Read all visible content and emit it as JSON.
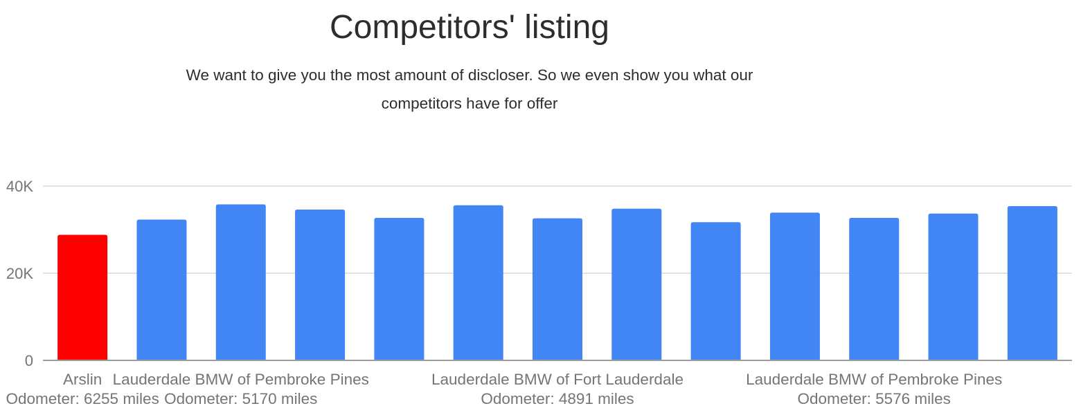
{
  "title": "Competitors' listing",
  "subtitle": "We want to give you the most amount of discloser. So we even show you what our competitors have for offer",
  "colors": {
    "highlight": "#ff0000",
    "bar": "#4285f4",
    "grid": "#d9d9d9",
    "axis": "#9e9e9e",
    "tick_text": "#757575"
  },
  "chart_data": {
    "type": "bar",
    "title": "Competitors' listing",
    "xlabel": "",
    "ylabel": "",
    "ylim": [
      0,
      40000
    ],
    "yticks": [
      {
        "value": 0,
        "label": "0"
      },
      {
        "value": 20000,
        "label": "20K"
      },
      {
        "value": 40000,
        "label": "40K"
      }
    ],
    "grid": true,
    "legend": "none",
    "categories": [
      "Arslin\nOdometer: 6255 miles",
      "",
      "Lauderdale BMW of Pembroke Pines\nOdometer: 5170 miles",
      "",
      "",
      "",
      "Lauderdale BMW of Fort Lauderdale\nOdometer: 4891 miles",
      "",
      "",
      "",
      "Lauderdale BMW of Pembroke Pines\nOdometer: 5576 miles",
      "",
      ""
    ],
    "values": [
      28800,
      32300,
      35800,
      34600,
      32700,
      35600,
      32600,
      34800,
      31700,
      33900,
      32700,
      33700,
      35400
    ],
    "bar_colors": [
      "#ff0000",
      "#4285f4",
      "#4285f4",
      "#4285f4",
      "#4285f4",
      "#4285f4",
      "#4285f4",
      "#4285f4",
      "#4285f4",
      "#4285f4",
      "#4285f4",
      "#4285f4",
      "#4285f4"
    ]
  }
}
